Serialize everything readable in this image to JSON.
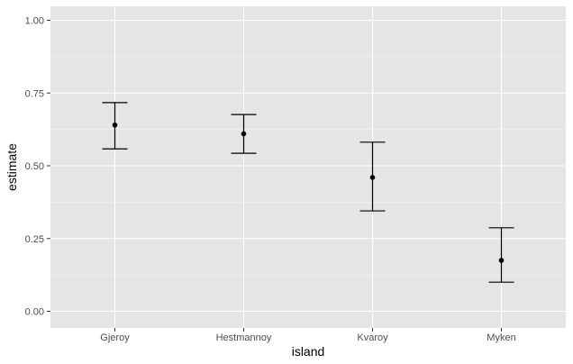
{
  "chart_data": {
    "type": "scatter",
    "subtype": "point-with-errorbars",
    "xlabel": "island",
    "ylabel": "estimate",
    "categories": [
      "Gjeroy",
      "Hestmannoy",
      "Kvaroy",
      "Myken"
    ],
    "series": [
      {
        "estimate": [
          0.64,
          0.61,
          0.46,
          0.175
        ],
        "lower": [
          0.558,
          0.543,
          0.345,
          0.1
        ],
        "upper": [
          0.717,
          0.676,
          0.581,
          0.287
        ]
      }
    ],
    "ylim": [
      0,
      1
    ],
    "yticks": [
      0.0,
      0.25,
      0.5,
      0.75,
      1.0
    ],
    "ytick_labels": [
      "0.00",
      "0.25",
      "0.50",
      "0.75",
      "1.00"
    ],
    "grid": true,
    "legend": "none",
    "colors": {
      "panel_background": "#e5e5e5",
      "major_grid": "#ffffff",
      "marks": "#000000",
      "tick_text": "#4d4d4d"
    }
  }
}
